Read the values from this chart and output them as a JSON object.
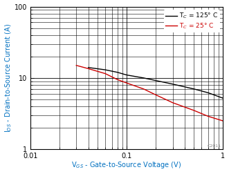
{
  "xlabel": "V$_{GS}$ - Gate-to-Source Voltage (V)",
  "ylabel": "I$_{DS}$ - Drain-to-Source Current (A)",
  "xlim": [
    0.01,
    1.0
  ],
  "ylim": [
    1,
    100
  ],
  "legend_labels": [
    "T$_C$ = 125° C",
    "T$_C$ = 25° C"
  ],
  "legend_colors": [
    "#000000",
    "#cc0000"
  ],
  "line_125C_x": [
    0.04,
    0.06,
    0.08,
    0.1,
    0.15,
    0.2,
    0.3,
    0.5,
    0.7,
    1.0
  ],
  "line_125C_y": [
    14.0,
    13.0,
    12.0,
    11.0,
    10.0,
    9.2,
    8.2,
    7.0,
    6.2,
    5.2
  ],
  "line_25C_x": [
    0.03,
    0.04,
    0.06,
    0.08,
    0.1,
    0.15,
    0.2,
    0.3,
    0.5,
    0.7,
    1.0
  ],
  "line_25C_y": [
    15.0,
    13.5,
    11.5,
    9.5,
    8.5,
    7.0,
    5.8,
    4.5,
    3.5,
    2.9,
    2.5
  ],
  "watermark": "C2011",
  "bg_color": "#ffffff",
  "grid_color": "#000000",
  "axis_color": "#000000",
  "label_color": "#0070c0",
  "tick_label_color": "#000000",
  "figwidth": 3.31,
  "figheight": 2.52,
  "dpi": 100
}
